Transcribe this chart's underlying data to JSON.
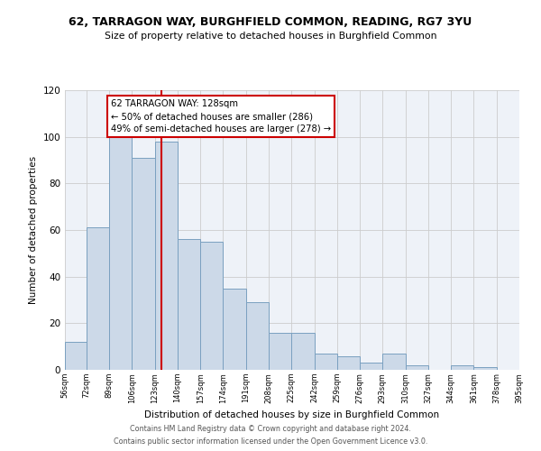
{
  "title": "62, TARRAGON WAY, BURGHFIELD COMMON, READING, RG7 3YU",
  "subtitle": "Size of property relative to detached houses in Burghfield Common",
  "xlabel": "Distribution of detached houses by size in Burghfield Common",
  "ylabel": "Number of detached properties",
  "bar_color": "#ccd9e8",
  "bar_edge_color": "#7aa0c0",
  "grid_color": "#cccccc",
  "bin_edges": [
    56,
    72,
    89,
    106,
    123,
    140,
    157,
    174,
    191,
    208,
    225,
    242,
    259,
    276,
    293,
    310,
    327,
    344,
    361,
    378,
    395
  ],
  "bar_heights": [
    12,
    61,
    100,
    91,
    98,
    56,
    55,
    35,
    29,
    16,
    16,
    7,
    6,
    3,
    7,
    2,
    0,
    2,
    1,
    0
  ],
  "ylim": [
    0,
    120
  ],
  "yticks": [
    0,
    20,
    40,
    60,
    80,
    100,
    120
  ],
  "tick_labels": [
    "56sqm",
    "72sqm",
    "89sqm",
    "106sqm",
    "123sqm",
    "140sqm",
    "157sqm",
    "174sqm",
    "191sqm",
    "208sqm",
    "225sqm",
    "242sqm",
    "259sqm",
    "276sqm",
    "293sqm",
    "310sqm",
    "327sqm",
    "344sqm",
    "361sqm",
    "378sqm",
    "395sqm"
  ],
  "vline_x": 128,
  "vline_color": "#cc0000",
  "annotation_title": "62 TARRAGON WAY: 128sqm",
  "annotation_line1": "← 50% of detached houses are smaller (286)",
  "annotation_line2": "49% of semi-detached houses are larger (278) →",
  "annotation_box_color": "#ffffff",
  "annotation_box_edge_color": "#cc0000",
  "footer1": "Contains HM Land Registry data © Crown copyright and database right 2024.",
  "footer2": "Contains public sector information licensed under the Open Government Licence v3.0.",
  "background_color": "#eef2f8"
}
